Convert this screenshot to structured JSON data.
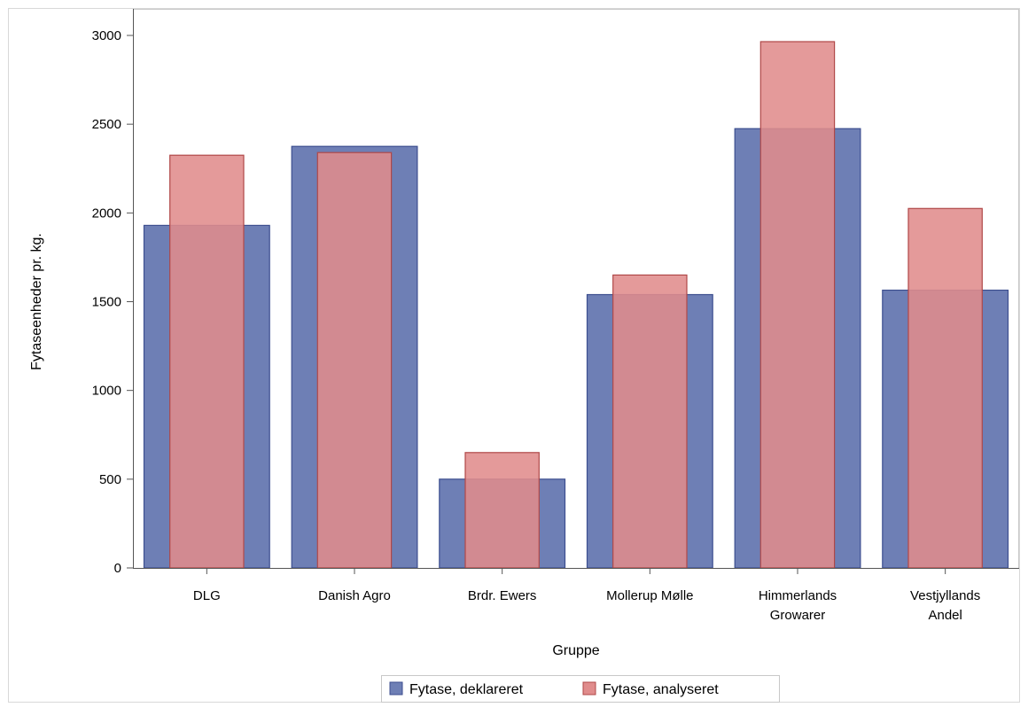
{
  "chart_data": {
    "type": "bar",
    "categories": [
      [
        "DLG"
      ],
      [
        "Danish Agro"
      ],
      [
        "Brdr. Ewers"
      ],
      [
        "Mollerup Mølle"
      ],
      [
        "Himmerlands",
        "Growarer"
      ],
      [
        "Vestjyllands",
        "Andel"
      ]
    ],
    "series": [
      {
        "name": "Fytase, deklareret",
        "values": [
          1930,
          2375,
          500,
          1540,
          2475,
          1565
        ],
        "color": "#6e7fb5",
        "stroke": "#3c4e8f"
      },
      {
        "name": "Fytase, analyseret",
        "values": [
          2325,
          2340,
          650,
          1650,
          2965,
          2025
        ],
        "color": "#e08c8c",
        "stroke": "#b04848",
        "opacity": 0.88
      }
    ],
    "xlabel": "Gruppe",
    "ylabel": "Fytaseenheder pr. kg.",
    "ylim": [
      0,
      3000
    ],
    "yticks": [
      0,
      500,
      1000,
      1500,
      2000,
      2500,
      3000
    ],
    "grid": false,
    "legend": "bottom-center"
  }
}
